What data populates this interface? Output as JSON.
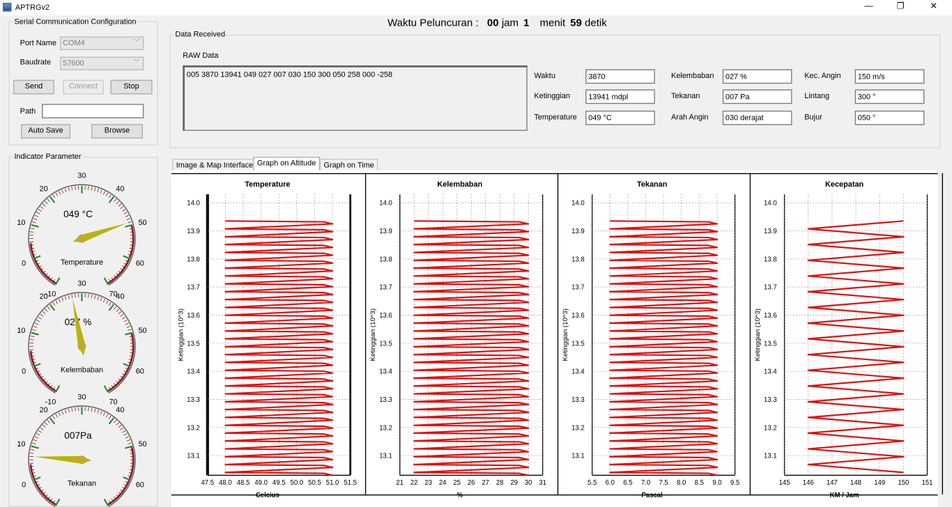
{
  "window": {
    "title": "APTRGv2",
    "controls": {
      "minimize": "—",
      "maximize": "❐",
      "close": "✕"
    }
  },
  "launch": {
    "prefix": "Waktu Peluncuran :",
    "hours": "00",
    "hours_unit": "jam",
    "minutes": "1",
    "minutes_unit": "menit",
    "seconds": "59",
    "seconds_unit": "detik"
  },
  "serial": {
    "title": "Serial Communication Configuration",
    "port_label": "Port Name",
    "port_value": "COM4",
    "baud_label": "Baudrate",
    "baud_value": "57600",
    "send": "Send",
    "connect": "Connect",
    "stop": "Stop",
    "path_label": "Path",
    "path_value": "",
    "autosave": "Auto Save",
    "browse": "Browse"
  },
  "received": {
    "title": "Data Received",
    "raw_label": "RAW Data",
    "raw_value": "005 3870 13941 049 027 007 030 150 300 050 258 000 -258",
    "fields": [
      {
        "label": "Waktu",
        "value": "3870"
      },
      {
        "label": "Ketinggian",
        "value": "13941 mdpl"
      },
      {
        "label": "Temperature",
        "value": "049 °C"
      },
      {
        "label": "Kelembaban",
        "value": "027 %"
      },
      {
        "label": "Tekanan",
        "value": "007 Pa"
      },
      {
        "label": "Arah Angin",
        "value": "030 derajat"
      },
      {
        "label": "Kec. Angin",
        "value": "150 m/s"
      },
      {
        "label": "Lintang",
        "value": "300 °"
      },
      {
        "label": "Bujur",
        "value": "050 °"
      }
    ]
  },
  "indicator": {
    "title": "Indicator Parameter",
    "gauges": [
      {
        "label": "Temperature",
        "readout": "049 °C",
        "value": 49,
        "ticks": [
          "-10",
          "0",
          "10",
          "20",
          "30",
          "40",
          "50",
          "60",
          "70"
        ]
      },
      {
        "label": "Kelembaban",
        "readout": "027 %",
        "value": 27,
        "ticks": [
          "-10",
          "0",
          "10",
          "20",
          "30",
          "40",
          "50",
          "60",
          "70"
        ]
      },
      {
        "label": "Tekanan",
        "readout": "007Pa",
        "value": 7,
        "ticks": [
          "-10",
          "0",
          "10",
          "20",
          "30",
          "40",
          "50",
          "60",
          "70"
        ]
      }
    ]
  },
  "tabs": [
    "Image & Map Interface",
    "Graph on Altitude",
    "Graph on Time"
  ],
  "active_tab": 1,
  "colors": {
    "series": "#e01010",
    "needle": "#b5b000",
    "gauge_red": "#8b1a1a",
    "gauge_green": "#2e8b2e"
  },
  "chart_data": [
    {
      "type": "line",
      "title": "Temperature",
      "xlabel": "Celcius",
      "ylabel": "Ketinggian (10^3)",
      "xlim": [
        47.5,
        51.5
      ],
      "ylim": [
        13.03,
        14.03
      ],
      "xticks": [
        "47.5",
        "48.0",
        "48.5",
        "49.0",
        "49.5",
        "50.0",
        "50.5",
        "51.0",
        "51.5"
      ],
      "yticks": [
        "13.1",
        "13.2",
        "13.3",
        "13.4",
        "13.5",
        "13.6",
        "13.7",
        "13.8",
        "13.9",
        "14.0"
      ],
      "series": [
        {
          "min": 48.0,
          "max": 51.0,
          "shape": "sawtooth"
        }
      ]
    },
    {
      "type": "line",
      "title": "Kelembaban",
      "xlabel": "%",
      "ylabel": "Ketinggian (10^3)",
      "xlim": [
        21,
        31
      ],
      "ylim": [
        13.03,
        14.03
      ],
      "xticks": [
        "21",
        "22",
        "23",
        "24",
        "25",
        "26",
        "27",
        "28",
        "29",
        "30",
        "31"
      ],
      "yticks": [
        "13.1",
        "13.2",
        "13.3",
        "13.4",
        "13.5",
        "13.6",
        "13.7",
        "13.8",
        "13.9",
        "14.0"
      ],
      "series": [
        {
          "min": 22,
          "max": 30,
          "shape": "sawtooth"
        }
      ]
    },
    {
      "type": "line",
      "title": "Tekanan",
      "xlabel": "Pascal",
      "ylabel": "Ketinggian (10^3)",
      "xlim": [
        5.5,
        9.5
      ],
      "ylim": [
        13.03,
        14.03
      ],
      "xticks": [
        "5.5",
        "6.0",
        "6.5",
        "7.0",
        "7.5",
        "8.0",
        "8.5",
        "9.0",
        "9.5"
      ],
      "yticks": [
        "13.1",
        "13.2",
        "13.3",
        "13.4",
        "13.5",
        "13.6",
        "13.7",
        "13.8",
        "13.9",
        "14.0"
      ],
      "series": [
        {
          "min": 6.0,
          "max": 9.0,
          "shape": "sawtooth"
        }
      ]
    },
    {
      "type": "line",
      "title": "Kecepatan",
      "xlabel": "KM / Jam",
      "ylabel": "Ketinggian (10^3)",
      "xlim": [
        145,
        151
      ],
      "ylim": [
        13.03,
        14.03
      ],
      "xticks": [
        "145",
        "146",
        "147",
        "148",
        "149",
        "150",
        "151"
      ],
      "yticks": [
        "13.1",
        "13.2",
        "13.3",
        "13.4",
        "13.5",
        "13.6",
        "13.7",
        "13.8",
        "13.9",
        "14.0"
      ],
      "series": [
        {
          "min": 146,
          "max": 150,
          "shape": "zigzag"
        }
      ]
    }
  ]
}
